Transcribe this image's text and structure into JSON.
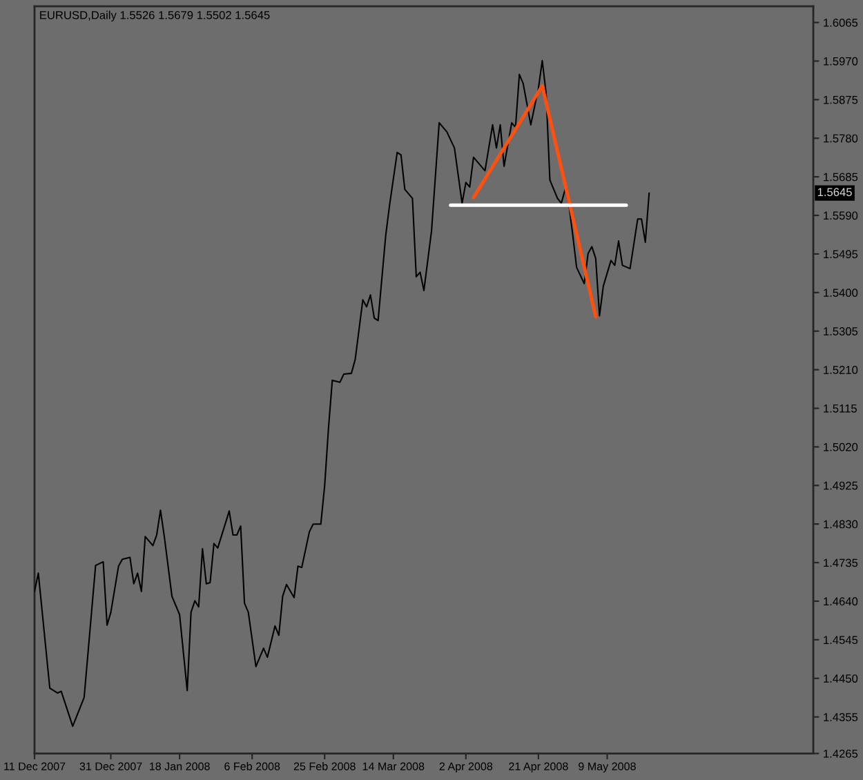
{
  "chart_data": {
    "type": "line",
    "title": "EURUSD,Daily 1.5526 1.5679 1.5502 1.5645",
    "x": [
      "2007-12-11",
      "2007-12-12",
      "2007-12-15",
      "2007-12-17",
      "2007-12-18",
      "2007-12-21",
      "2007-12-24",
      "2007-12-27",
      "2007-12-29",
      "2007-12-30",
      "2007-12-31",
      "2008-01-02",
      "2008-01-03",
      "2008-01-05",
      "2008-01-06",
      "2008-01-07",
      "2008-01-08",
      "2008-01-09",
      "2008-01-11",
      "2008-01-12",
      "2008-01-13",
      "2008-01-14",
      "2008-01-16",
      "2008-01-18",
      "2008-01-20",
      "2008-01-21",
      "2008-01-22",
      "2008-01-23",
      "2008-01-24",
      "2008-01-25",
      "2008-01-26",
      "2008-01-27",
      "2008-01-28",
      "2008-01-31",
      "2008-02-01",
      "2008-02-02",
      "2008-02-03",
      "2008-02-04",
      "2008-02-05",
      "2008-02-07",
      "2008-02-09",
      "2008-02-10",
      "2008-02-12",
      "2008-02-13",
      "2008-02-14",
      "2008-02-15",
      "2008-02-17",
      "2008-02-18",
      "2008-02-19",
      "2008-02-21",
      "2008-02-22",
      "2008-02-24",
      "2008-02-25",
      "2008-02-26",
      "2008-02-27",
      "2008-02-29",
      "2008-03-01",
      "2008-03-03",
      "2008-03-04",
      "2008-03-06",
      "2008-03-07",
      "2008-03-08",
      "2008-03-09",
      "2008-03-10",
      "2008-03-12",
      "2008-03-13",
      "2008-03-15",
      "2008-03-16",
      "2008-03-17",
      "2008-03-19",
      "2008-03-20",
      "2008-03-21",
      "2008-03-22",
      "2008-03-24",
      "2008-03-26",
      "2008-03-28",
      "2008-03-30",
      "2008-04-01",
      "2008-04-02",
      "2008-04-03",
      "2008-04-04",
      "2008-04-07",
      "2008-04-09",
      "2008-04-10",
      "2008-04-11",
      "2008-04-12",
      "2008-04-14",
      "2008-04-15",
      "2008-04-16",
      "2008-04-17",
      "2008-04-19",
      "2008-04-21",
      "2008-04-22",
      "2008-04-23",
      "2008-04-24",
      "2008-04-26",
      "2008-04-27",
      "2008-04-28",
      "2008-04-29",
      "2008-04-30",
      "2008-05-01",
      "2008-05-03",
      "2008-05-04",
      "2008-05-05",
      "2008-05-06",
      "2008-05-07",
      "2008-05-08",
      "2008-05-10",
      "2008-05-11",
      "2008-05-12",
      "2008-05-13",
      "2008-05-15",
      "2008-05-17",
      "2008-05-18",
      "2008-05-19",
      "2008-05-20"
    ],
    "series": [
      {
        "color": "#000000",
        "values": [
          1.4664,
          1.4709,
          1.4426,
          1.4414,
          1.4418,
          1.4332,
          1.4403,
          1.4728,
          1.4737,
          1.4581,
          1.4613,
          1.4726,
          1.4743,
          1.4748,
          1.4683,
          1.4709,
          1.4664,
          1.4799,
          1.4777,
          1.4803,
          1.4864,
          1.4799,
          1.4652,
          1.4607,
          1.442,
          1.4613,
          1.4641,
          1.4626,
          1.4769,
          1.4683,
          1.4686,
          1.4782,
          1.4771,
          1.4862,
          1.4803,
          1.4803,
          1.4825,
          1.4635,
          1.4613,
          1.4479,
          1.4524,
          1.4502,
          1.4579,
          1.4556,
          1.4652,
          1.4681,
          1.4649,
          1.4726,
          1.4723,
          1.4811,
          1.483,
          1.483,
          1.4924,
          1.5065,
          1.5184,
          1.5179,
          1.5199,
          1.5201,
          1.5235,
          1.5382,
          1.5365,
          1.5394,
          1.5337,
          1.5331,
          1.5541,
          1.5615,
          1.5745,
          1.5739,
          1.5654,
          1.5632,
          1.5439,
          1.545,
          1.5405,
          1.5552,
          1.5818,
          1.5796,
          1.5756,
          1.562,
          1.5671,
          1.566,
          1.5733,
          1.57,
          1.5813,
          1.5756,
          1.5813,
          1.5711,
          1.5818,
          1.5807,
          1.5937,
          1.5915,
          1.5813,
          1.5903,
          1.5971,
          1.5892,
          1.5677,
          1.5632,
          1.562,
          1.5654,
          1.5615,
          1.5541,
          1.5462,
          1.5422,
          1.5496,
          1.5513,
          1.5484,
          1.5343,
          1.5416,
          1.5479,
          1.5467,
          1.5527,
          1.5467,
          1.5459,
          1.5581,
          1.5581,
          1.5524,
          1.5645
        ]
      },
      {
        "type": "line",
        "color": "#ff5010",
        "x": [
          "2008-04-04",
          "2008-04-22",
          "2008-05-06"
        ],
        "values": [
          1.5634,
          1.5909,
          1.5341
        ]
      },
      {
        "type": "line",
        "color": "#ffffff",
        "x": [
          "2008-03-29",
          "2008-05-14"
        ],
        "values": [
          1.5615,
          1.5615
        ]
      }
    ],
    "xlim": [
      "2007-12-11",
      "2008-07-02"
    ],
    "xticks": [
      {
        "value": "2007-12-11",
        "label": "11 Dec 2007"
      },
      {
        "value": "2007-12-31",
        "label": "31 Dec 2007"
      },
      {
        "value": "2008-01-18",
        "label": "18 Jan 2008"
      },
      {
        "value": "2008-02-06",
        "label": "6 Feb 2008"
      },
      {
        "value": "2008-02-25",
        "label": "25 Feb 2008"
      },
      {
        "value": "2008-03-14",
        "label": "14 Mar 2008"
      },
      {
        "value": "2008-04-02",
        "label": "2 Apr 2008"
      },
      {
        "value": "2008-04-21",
        "label": "21 Apr 2008"
      },
      {
        "value": "2008-05-09",
        "label": "9 May 2008"
      }
    ],
    "ylim": [
      1.4265,
      1.6105
    ],
    "yticks": [
      1.4265,
      1.4355,
      {
        "value": 1.445,
        "label": "1.4450"
      },
      1.4545,
      {
        "value": 1.464,
        "label": "1.4640"
      },
      1.4735,
      {
        "value": 1.483,
        "label": "1.4830"
      },
      1.4925,
      {
        "value": 1.502,
        "label": "1.5020"
      },
      1.5115,
      {
        "value": 1.521,
        "label": "1.5210"
      },
      1.5305,
      {
        "value": 1.54,
        "label": "1.5400"
      },
      1.5495,
      {
        "value": 1.559,
        "label": "1.5590"
      },
      1.5685,
      {
        "value": 1.578,
        "label": "1.5780"
      },
      1.5875,
      {
        "value": 1.597,
        "label": "1.5970"
      },
      1.6065
    ],
    "annotations": [
      {
        "text": "1.5645",
        "y": 1.5645
      }
    ]
  }
}
